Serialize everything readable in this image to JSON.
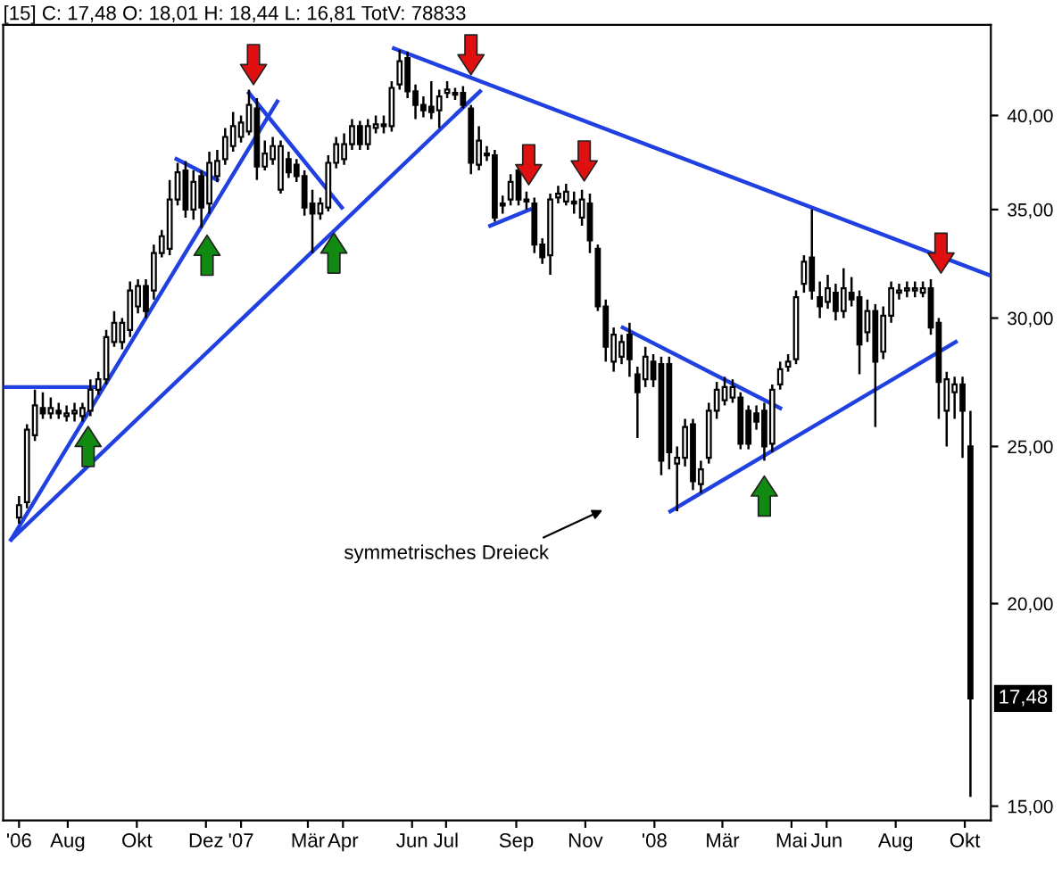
{
  "chart_data": {
    "type": "candlestick",
    "title": "[15] C: 17,48 O: 18,01 H: 18,44 L: 16,81 TotV: 78833",
    "x": [
      "2006-06-19",
      "2006-06-26",
      "2006-07-03",
      "2006-07-10",
      "2006-07-17",
      "2006-07-24",
      "2006-07-31",
      "2006-08-07",
      "2006-08-14",
      "2006-08-21",
      "2006-08-28",
      "2006-09-04",
      "2006-09-11",
      "2006-09-18",
      "2006-09-25",
      "2006-10-02",
      "2006-10-09",
      "2006-10-16",
      "2006-10-23",
      "2006-10-30",
      "2006-11-06",
      "2006-11-13",
      "2006-11-20",
      "2006-11-27",
      "2006-12-04",
      "2006-12-11",
      "2006-12-18",
      "2006-12-25",
      "2007-01-01",
      "2007-01-08",
      "2007-01-15",
      "2007-01-22",
      "2007-01-29",
      "2007-02-05",
      "2007-02-12",
      "2007-02-19",
      "2007-02-26",
      "2007-03-05",
      "2007-03-12",
      "2007-03-19",
      "2007-03-26",
      "2007-04-02",
      "2007-04-09",
      "2007-04-16",
      "2007-04-23",
      "2007-04-30",
      "2007-05-07",
      "2007-05-14",
      "2007-05-21",
      "2007-05-28",
      "2007-06-04",
      "2007-06-11",
      "2007-06-18",
      "2007-06-25",
      "2007-07-02",
      "2007-07-09",
      "2007-07-16",
      "2007-07-23",
      "2007-07-30",
      "2007-08-06",
      "2007-08-13",
      "2007-08-20",
      "2007-08-27",
      "2007-09-03",
      "2007-09-10",
      "2007-09-17",
      "2007-09-24",
      "2007-10-01",
      "2007-10-08",
      "2007-10-15",
      "2007-10-22",
      "2007-10-29",
      "2007-11-05",
      "2007-11-12",
      "2007-11-19",
      "2007-11-26",
      "2007-12-03",
      "2007-12-10",
      "2007-12-17",
      "2007-12-24",
      "2007-12-31",
      "2008-01-07",
      "2008-01-14",
      "2008-01-21",
      "2008-01-28",
      "2008-02-04",
      "2008-02-11",
      "2008-02-18",
      "2008-02-25",
      "2008-03-03",
      "2008-03-10",
      "2008-03-17",
      "2008-03-24",
      "2008-03-31",
      "2008-04-07",
      "2008-04-14",
      "2008-04-21",
      "2008-04-28",
      "2008-05-05",
      "2008-05-12",
      "2008-05-19",
      "2008-05-26",
      "2008-06-02",
      "2008-06-09",
      "2008-06-16",
      "2008-06-23",
      "2008-06-30",
      "2008-07-07",
      "2008-07-14",
      "2008-07-21",
      "2008-07-28",
      "2008-08-04",
      "2008-08-11",
      "2008-08-18",
      "2008-08-25",
      "2008-09-01",
      "2008-09-08",
      "2008-09-15",
      "2008-09-22",
      "2008-09-29",
      "2008-10-06"
    ],
    "ohlc": [
      [
        22.6,
        23.3,
        22.4,
        23.0
      ],
      [
        23.1,
        25.8,
        22.9,
        25.6
      ],
      [
        25.4,
        27.1,
        25.2,
        26.5
      ],
      [
        26.4,
        27.0,
        26.0,
        26.2
      ],
      [
        26.2,
        26.8,
        26.0,
        26.4
      ],
      [
        26.3,
        26.6,
        26.0,
        26.2
      ],
      [
        26.1,
        26.5,
        25.9,
        26.2
      ],
      [
        26.2,
        26.6,
        25.9,
        26.3
      ],
      [
        26.1,
        26.6,
        25.9,
        26.4
      ],
      [
        26.3,
        27.5,
        26.1,
        27.1
      ],
      [
        27.1,
        27.8,
        26.9,
        27.5
      ],
      [
        27.5,
        29.5,
        27.3,
        29.2
      ],
      [
        29.0,
        30.3,
        28.8,
        29.8
      ],
      [
        29.0,
        30.0,
        28.7,
        29.8
      ],
      [
        29.5,
        31.6,
        29.2,
        31.2
      ],
      [
        30.5,
        31.7,
        30.2,
        31.4
      ],
      [
        31.4,
        31.7,
        30.0,
        30.3
      ],
      [
        31.2,
        33.3,
        30.8,
        32.9
      ],
      [
        32.9,
        34.0,
        32.7,
        33.7
      ],
      [
        33.1,
        36.5,
        32.8,
        35.5
      ],
      [
        35.5,
        37.4,
        35.2,
        36.9
      ],
      [
        37.0,
        37.5,
        34.6,
        35.0
      ],
      [
        35.0,
        37.0,
        34.5,
        36.4
      ],
      [
        36.7,
        37.0,
        34.1,
        35.1
      ],
      [
        35.3,
        38.0,
        34.8,
        37.4
      ],
      [
        36.7,
        38.1,
        36.4,
        37.5
      ],
      [
        37.6,
        39.3,
        37.3,
        38.8
      ],
      [
        38.3,
        40.2,
        38.0,
        39.4
      ],
      [
        38.8,
        40.0,
        38.5,
        39.6
      ],
      [
        39.1,
        41.5,
        38.9,
        40.6
      ],
      [
        40.4,
        41.0,
        36.5,
        37.2
      ],
      [
        37.2,
        38.6,
        37.0,
        37.9
      ],
      [
        37.6,
        38.8,
        37.3,
        38.3
      ],
      [
        36.0,
        38.6,
        35.8,
        38.3
      ],
      [
        37.6,
        38.0,
        36.6,
        36.9
      ],
      [
        37.3,
        37.6,
        36.4,
        36.7
      ],
      [
        36.7,
        37.0,
        34.7,
        35.1
      ],
      [
        35.3,
        36.0,
        32.9,
        34.8
      ],
      [
        34.8,
        35.6,
        34.5,
        35.3
      ],
      [
        35.1,
        37.8,
        34.9,
        37.4
      ],
      [
        37.4,
        38.8,
        37.1,
        38.4
      ],
      [
        37.6,
        39.0,
        37.3,
        38.4
      ],
      [
        38.4,
        39.8,
        38.1,
        39.4
      ],
      [
        39.4,
        39.7,
        38.1,
        38.4
      ],
      [
        38.4,
        39.8,
        38.1,
        39.4
      ],
      [
        39.3,
        40.0,
        39.0,
        39.5
      ],
      [
        39.4,
        40.0,
        39.0,
        39.5
      ],
      [
        39.4,
        42.0,
        39.1,
        41.6
      ],
      [
        41.8,
        43.9,
        41.5,
        43.2
      ],
      [
        43.4,
        43.8,
        41.0,
        41.4
      ],
      [
        41.4,
        41.8,
        39.8,
        40.6
      ],
      [
        40.6,
        41.1,
        39.9,
        40.3
      ],
      [
        40.5,
        42.0,
        39.8,
        40.2
      ],
      [
        40.3,
        41.5,
        39.3,
        41.1
      ],
      [
        41.3,
        42.0,
        41.0,
        41.5
      ],
      [
        41.3,
        41.6,
        40.9,
        41.2
      ],
      [
        41.3,
        41.7,
        40.4,
        40.6
      ],
      [
        40.4,
        40.6,
        36.8,
        37.4
      ],
      [
        37.3,
        39.4,
        37.0,
        38.6
      ],
      [
        37.9,
        38.3,
        37.5,
        37.8
      ],
      [
        37.8,
        38.1,
        34.4,
        34.6
      ],
      [
        35.2,
        35.7,
        34.8,
        35.3
      ],
      [
        35.5,
        36.8,
        35.2,
        36.4
      ],
      [
        37.0,
        37.3,
        35.2,
        35.5
      ],
      [
        35.4,
        35.9,
        35.0,
        35.5
      ],
      [
        35.3,
        35.6,
        32.9,
        33.3
      ],
      [
        33.3,
        33.6,
        32.4,
        32.7
      ],
      [
        32.8,
        35.8,
        31.9,
        35.5
      ],
      [
        35.6,
        36.2,
        35.3,
        35.8
      ],
      [
        35.4,
        36.3,
        35.2,
        35.9
      ],
      [
        35.4,
        35.9,
        34.8,
        35.3
      ],
      [
        34.6,
        36.0,
        34.2,
        35.5
      ],
      [
        35.3,
        35.8,
        32.9,
        33.5
      ],
      [
        33.1,
        33.3,
        30.3,
        30.5
      ],
      [
        30.5,
        30.8,
        28.2,
        28.8
      ],
      [
        28.2,
        29.6,
        27.8,
        29.3
      ],
      [
        28.4,
        29.3,
        28.1,
        29.0
      ],
      [
        29.3,
        29.8,
        27.6,
        28.3
      ],
      [
        27.7,
        28.0,
        25.3,
        27.0
      ],
      [
        27.5,
        28.8,
        27.2,
        28.4
      ],
      [
        28.2,
        28.5,
        27.2,
        27.5
      ],
      [
        28.1,
        28.4,
        24.0,
        24.5
      ],
      [
        28.1,
        28.4,
        24.2,
        24.8
      ],
      [
        24.4,
        25.0,
        22.8,
        24.6
      ],
      [
        24.6,
        26.0,
        24.3,
        25.7
      ],
      [
        25.8,
        26.0,
        23.5,
        23.8
      ],
      [
        23.7,
        24.5,
        23.4,
        24.2
      ],
      [
        24.6,
        26.6,
        24.4,
        26.3
      ],
      [
        26.3,
        27.4,
        26.0,
        27.1
      ],
      [
        26.7,
        27.6,
        26.5,
        27.2
      ],
      [
        26.8,
        27.5,
        26.6,
        27.2
      ],
      [
        26.8,
        27.0,
        24.9,
        25.1
      ],
      [
        26.3,
        26.5,
        24.9,
        25.1
      ],
      [
        26.2,
        26.5,
        25.6,
        25.9
      ],
      [
        26.3,
        26.6,
        24.5,
        25.0
      ],
      [
        25.1,
        27.3,
        24.8,
        27.1
      ],
      [
        27.3,
        28.2,
        27.1,
        27.9
      ],
      [
        28.0,
        28.5,
        27.8,
        28.2
      ],
      [
        28.3,
        31.2,
        28.1,
        30.9
      ],
      [
        31.5,
        32.8,
        31.1,
        32.5
      ],
      [
        32.7,
        35.0,
        30.8,
        31.2
      ],
      [
        30.9,
        31.6,
        30.0,
        30.5
      ],
      [
        30.7,
        31.9,
        30.4,
        31.3
      ],
      [
        31.1,
        31.5,
        29.9,
        30.3
      ],
      [
        30.3,
        32.2,
        30.0,
        31.3
      ],
      [
        31.1,
        31.8,
        30.5,
        30.8
      ],
      [
        30.9,
        31.2,
        27.7,
        28.9
      ],
      [
        29.4,
        30.8,
        29.0,
        30.3
      ],
      [
        30.3,
        30.6,
        25.7,
        28.2
      ],
      [
        28.6,
        30.5,
        28.3,
        30.1
      ],
      [
        30.1,
        31.6,
        29.8,
        31.3
      ],
      [
        31.1,
        31.5,
        30.8,
        31.2
      ],
      [
        31.2,
        31.6,
        30.9,
        31.3
      ],
      [
        31.2,
        31.6,
        30.9,
        31.3
      ],
      [
        31.1,
        31.6,
        30.9,
        31.3
      ],
      [
        31.3,
        31.7,
        29.3,
        29.6
      ],
      [
        29.8,
        30.0,
        26.0,
        27.4
      ],
      [
        26.3,
        27.8,
        25.0,
        27.5
      ],
      [
        27.0,
        27.6,
        26.0,
        27.3
      ],
      [
        27.3,
        27.6,
        24.6,
        26.3
      ],
      [
        25.0,
        26.3,
        15.2,
        17.48
      ]
    ],
    "series": [
      {
        "type": "line",
        "color": "#2040e0",
        "x": [
          "2006-06-05",
          "2006-08-26"
        ],
        "values": [
          27.2,
          27.2
        ]
      },
      {
        "type": "line",
        "color": "#2040e0",
        "x": [
          "2006-06-12",
          "2007-02-02"
        ],
        "values": [
          21.9,
          40.8
        ]
      },
      {
        "type": "line",
        "color": "#2040e0",
        "x": [
          "2006-06-12",
          "2007-07-31"
        ],
        "values": [
          21.9,
          41.4
        ]
      },
      {
        "type": "line",
        "color": "#2040e0",
        "x": [
          "2006-11-05",
          "2006-12-11"
        ],
        "values": [
          37.6,
          36.5
        ]
      },
      {
        "type": "line",
        "color": "#2040e0",
        "x": [
          "2007-01-08",
          "2007-03-31"
        ],
        "values": [
          41.3,
          35.1
        ]
      },
      {
        "type": "line",
        "color": "#2040e0",
        "x": [
          "2007-05-16",
          "2008-10-22"
        ],
        "values": [
          44.0,
          31.9
        ]
      },
      {
        "type": "line",
        "color": "#2040e0",
        "x": [
          "2007-08-09",
          "2007-09-13"
        ],
        "values": [
          34.2,
          35.0
        ]
      },
      {
        "type": "line",
        "color": "#2040e0",
        "x": [
          "2007-12-04",
          "2008-04-21"
        ],
        "values": [
          29.6,
          26.4
        ]
      },
      {
        "type": "line",
        "color": "#2040e0",
        "x": [
          "2008-01-15",
          "2008-09-23"
        ],
        "values": [
          22.8,
          29.0
        ]
      },
      {
        "type": "scatter",
        "color": "#e01010",
        "x": [
          "2007-01-12",
          "2007-07-23",
          "2007-09-12",
          "2007-10-31",
          "2008-09-10"
        ],
        "values": [
          43.0,
          43.6,
          37.3,
          37.5,
          32.9
        ]
      },
      {
        "type": "scatter",
        "color": "#108a10",
        "x": [
          "2006-08-19",
          "2006-12-02",
          "2007-03-24",
          "2008-04-07"
        ],
        "values": [
          25.0,
          32.8,
          32.9,
          23.3
        ]
      }
    ],
    "annotations": [
      "symmetrisches Dreieck",
      {
        "text": "17,48",
        "y": 17.48
      }
    ],
    "log": true,
    "xlim": [
      "2006-06-05",
      "2008-10-24"
    ],
    "xticks": [
      {
        "value": "2006-06-19",
        "label": "'06"
      },
      {
        "value": "2006-08-01",
        "label": "Aug"
      },
      {
        "value": "2006-10-01",
        "label": "Okt"
      },
      {
        "value": "2006-12-01",
        "label": "Dez"
      },
      {
        "value": "2007-01-01",
        "label": "'07"
      },
      {
        "value": "2007-03-01",
        "label": "Mär"
      },
      {
        "value": "2007-04-01",
        "label": "Apr"
      },
      {
        "value": "2007-06-01",
        "label": "Jun"
      },
      {
        "value": "2007-07-01",
        "label": "Jul"
      },
      {
        "value": "2007-09-01",
        "label": "Sep"
      },
      {
        "value": "2007-11-01",
        "label": "Nov"
      },
      {
        "value": "2008-01-01",
        "label": "'08"
      },
      {
        "value": "2008-03-01",
        "label": "Mär"
      },
      {
        "value": "2008-05-01",
        "label": "Mai"
      },
      {
        "value": "2008-06-01",
        "label": "Jun"
      },
      {
        "value": "2008-08-01",
        "label": "Aug"
      },
      {
        "value": "2008-10-01",
        "label": "Okt"
      }
    ],
    "ylim": [
      14.7,
      45.5
    ],
    "yticks": [
      {
        "value": 15,
        "label": "15,00"
      },
      {
        "value": 20,
        "label": "20,00"
      },
      {
        "value": 25,
        "label": "25,00"
      },
      {
        "value": 30,
        "label": "30,00"
      },
      {
        "value": 35,
        "label": "35,00"
      },
      {
        "value": 40,
        "label": "40,00"
      }
    ],
    "grid": false,
    "legend": false
  }
}
